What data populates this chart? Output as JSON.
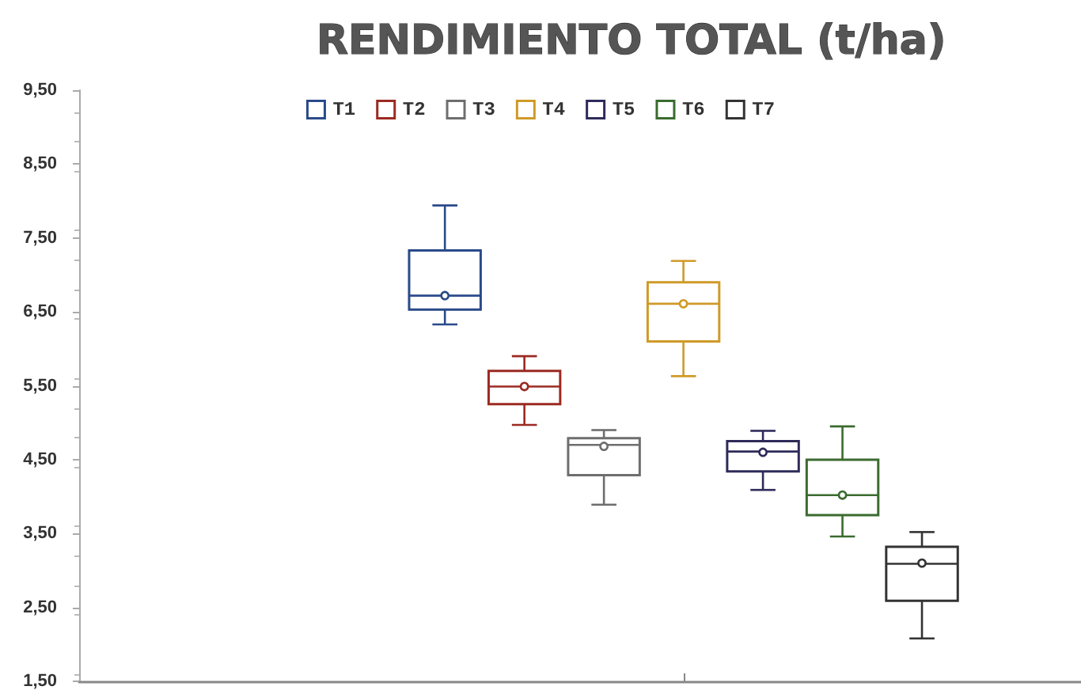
{
  "chart_data": {
    "type": "box",
    "title": "RENDIMIENTO TOTAL (t/ha)",
    "categories": [
      null
    ],
    "series": [
      {
        "name": "T1",
        "color": "#2a4a8a",
        "boxes": [
          {
            "low": 6.33,
            "q1": 6.53,
            "median": 6.72,
            "q3": 7.33,
            "high": 7.94,
            "mean": 6.72
          }
        ]
      },
      {
        "name": "T2",
        "color": "#9b2a22",
        "boxes": [
          {
            "low": 4.97,
            "q1": 5.25,
            "median": 5.49,
            "q3": 5.7,
            "high": 5.9,
            "mean": 5.49
          }
        ]
      },
      {
        "name": "T3",
        "color": "#6e6e6e",
        "boxes": [
          {
            "low": 3.89,
            "q1": 4.29,
            "median": 4.7,
            "q3": 4.79,
            "high": 4.9,
            "mean": 4.68
          }
        ]
      },
      {
        "name": "T4",
        "color": "#d09a28",
        "boxes": [
          {
            "low": 5.63,
            "q1": 6.1,
            "median": 6.61,
            "q3": 6.9,
            "high": 7.19,
            "mean": 6.61
          }
        ]
      },
      {
        "name": "T5",
        "color": "#2e2b5a",
        "boxes": [
          {
            "low": 4.09,
            "q1": 4.34,
            "median": 4.61,
            "q3": 4.75,
            "high": 4.89,
            "mean": 4.6
          }
        ]
      },
      {
        "name": "T6",
        "color": "#3a6b2f",
        "boxes": [
          {
            "low": 3.46,
            "q1": 3.75,
            "median": 4.02,
            "q3": 4.5,
            "high": 4.95,
            "mean": 4.02
          }
        ]
      },
      {
        "name": "T7",
        "color": "#333333",
        "boxes": [
          {
            "low": 2.08,
            "q1": 2.59,
            "median": 3.09,
            "q3": 3.32,
            "high": 3.52,
            "mean": 3.1
          }
        ]
      }
    ],
    "ylim": [
      1.5,
      9.5
    ],
    "yticks": [
      {
        "value": 1.5,
        "label": "1,50"
      },
      {
        "value": 2.5,
        "label": "2,50"
      },
      {
        "value": 3.5,
        "label": "3,50"
      },
      {
        "value": 4.5,
        "label": "4,50"
      },
      {
        "value": 5.5,
        "label": "5,50"
      },
      {
        "value": 6.5,
        "label": "6,50"
      },
      {
        "value": 7.5,
        "label": "7,50"
      },
      {
        "value": 8.5,
        "label": "8,50"
      },
      {
        "value": 9.5,
        "label": "9,50"
      }
    ],
    "grid": false,
    "legend": "top"
  }
}
